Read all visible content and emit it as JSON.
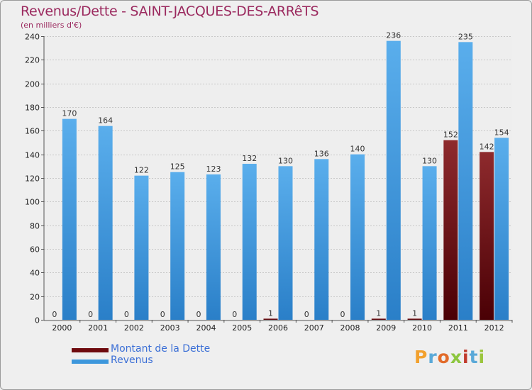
{
  "chart_data": {
    "type": "bar",
    "title": "Revenus/Dette - SAINT-JACQUES-DES-ARRêTS",
    "subtitle": "(en milliers d'€)",
    "categories": [
      "2000",
      "2001",
      "2002",
      "2003",
      "2004",
      "2005",
      "2006",
      "2007",
      "2008",
      "2009",
      "2010",
      "2011",
      "2012"
    ],
    "series": [
      {
        "name": "Montant de la Dette",
        "color": "#7a0f12",
        "values": [
          0,
          0,
          0,
          0,
          0,
          0,
          1,
          0,
          0,
          1,
          1,
          152,
          142
        ]
      },
      {
        "name": "Revenus",
        "color": "#3d97dc",
        "values": [
          170,
          164,
          122,
          125,
          123,
          132,
          130,
          136,
          140,
          236,
          130,
          235,
          154
        ]
      }
    ],
    "ylim": [
      0,
      240
    ],
    "yticks": [
      0,
      20,
      40,
      60,
      80,
      100,
      120,
      140,
      160,
      180,
      200,
      220,
      240
    ],
    "grid": true,
    "legend_position": "bottom-left"
  },
  "logo": {
    "text": "Proxiti"
  }
}
